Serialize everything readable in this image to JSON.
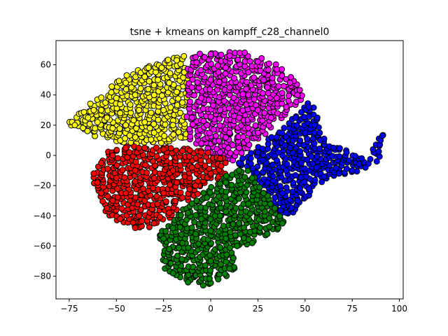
{
  "chart_data": {
    "type": "scatter",
    "title": "tsne + kmeans on kampff_c28_channel0",
    "xlabel": "",
    "ylabel": "",
    "xlim": [
      -82,
      102
    ],
    "ylim": [
      -95,
      76
    ],
    "x_ticks": [
      -75,
      -50,
      -25,
      0,
      25,
      50,
      75,
      100
    ],
    "y_ticks": [
      -80,
      -60,
      -40,
      -20,
      0,
      20,
      40,
      60
    ],
    "x_tick_labels": [
      "−75",
      "−50",
      "−25",
      "0",
      "25",
      "50",
      "75",
      "100"
    ],
    "y_tick_labels": [
      "−80",
      "−60",
      "−40",
      "−20",
      "0",
      "20",
      "40",
      "60"
    ],
    "grid": false,
    "marker_edge_color": "#000000",
    "clusters": [
      {
        "color": "#ffff00",
        "region_polygon": [
          [
            -76,
            21
          ],
          [
            -70,
            28
          ],
          [
            -62,
            36
          ],
          [
            -55,
            42
          ],
          [
            -48,
            52
          ],
          [
            -40,
            56
          ],
          [
            -30,
            60
          ],
          [
            -22,
            64
          ],
          [
            -14,
            66
          ],
          [
            -12,
            50
          ],
          [
            -13,
            30
          ],
          [
            -12,
            10
          ],
          [
            -30,
            6
          ],
          [
            -45,
            7
          ],
          [
            -55,
            10
          ],
          [
            -65,
            14
          ],
          [
            -73,
            18
          ]
        ],
        "points": [
          [
            -72,
            20
          ],
          [
            -65,
            25
          ],
          [
            -58,
            30
          ],
          [
            -50,
            38
          ],
          [
            -42,
            45
          ],
          [
            -35,
            52
          ],
          [
            -26,
            58
          ],
          [
            -18,
            63
          ],
          [
            -45,
            20
          ],
          [
            -38,
            30
          ],
          [
            -30,
            40
          ],
          [
            -22,
            48
          ],
          [
            -15,
            35
          ],
          [
            -20,
            20
          ],
          [
            -30,
            15
          ],
          [
            -40,
            12
          ],
          [
            -52,
            18
          ],
          [
            -60,
            22
          ],
          [
            -48,
            28
          ],
          [
            -35,
            22
          ],
          [
            -25,
            30
          ],
          [
            -18,
            42
          ],
          [
            -28,
            50
          ],
          [
            -40,
            40
          ],
          [
            -55,
            25
          ],
          [
            -14,
            55
          ],
          [
            -16,
            12
          ],
          [
            -45,
            48
          ],
          [
            -33,
            58
          ],
          [
            -62,
            30
          ]
        ]
      },
      {
        "color": "#ff00ff",
        "region_polygon": [
          [
            -13,
            66
          ],
          [
            -5,
            69
          ],
          [
            5,
            68
          ],
          [
            15,
            69
          ],
          [
            25,
            66
          ],
          [
            35,
            60
          ],
          [
            45,
            50
          ],
          [
            50,
            42
          ],
          [
            48,
            35
          ],
          [
            42,
            30
          ],
          [
            30,
            15
          ],
          [
            20,
            5
          ],
          [
            10,
            -5
          ],
          [
            0,
            0
          ],
          [
            -5,
            5
          ],
          [
            -12,
            10
          ],
          [
            -13,
            30
          ],
          [
            -12,
            50
          ]
        ],
        "points": [
          [
            -8,
            65
          ],
          [
            0,
            67
          ],
          [
            10,
            66
          ],
          [
            18,
            68
          ],
          [
            25,
            62
          ],
          [
            35,
            57
          ],
          [
            42,
            48
          ],
          [
            46,
            40
          ],
          [
            40,
            32
          ],
          [
            32,
            25
          ],
          [
            25,
            15
          ],
          [
            15,
            5
          ],
          [
            5,
            2
          ],
          [
            -5,
            8
          ],
          [
            -10,
            25
          ],
          [
            -10,
            45
          ],
          [
            0,
            50
          ],
          [
            10,
            45
          ],
          [
            20,
            40
          ],
          [
            30,
            45
          ],
          [
            5,
            30
          ],
          [
            15,
            25
          ],
          [
            -2,
            20
          ],
          [
            25,
            30
          ],
          [
            35,
            38
          ],
          [
            10,
            15
          ],
          [
            -5,
            38
          ],
          [
            20,
            55
          ],
          [
            8,
            58
          ],
          [
            28,
            50
          ]
        ]
      },
      {
        "color": "#0000ff",
        "region_polygon": [
          [
            12,
            -5
          ],
          [
            22,
            3
          ],
          [
            32,
            12
          ],
          [
            42,
            25
          ],
          [
            52,
            35
          ],
          [
            56,
            30
          ],
          [
            57,
            20
          ],
          [
            60,
            12
          ],
          [
            66,
            6
          ],
          [
            72,
            4
          ],
          [
            76,
            0
          ],
          [
            82,
            -4
          ],
          [
            86,
            2
          ],
          [
            88,
            12
          ],
          [
            92,
            14
          ],
          [
            92,
            6
          ],
          [
            90,
            0
          ],
          [
            86,
            -6
          ],
          [
            80,
            -10
          ],
          [
            72,
            -12
          ],
          [
            64,
            -14
          ],
          [
            56,
            -20
          ],
          [
            50,
            -30
          ],
          [
            44,
            -38
          ],
          [
            38,
            -44
          ],
          [
            35,
            -42
          ],
          [
            33,
            -30
          ],
          [
            28,
            -20
          ],
          [
            20,
            -10
          ]
        ],
        "points": [
          [
            15,
            -5
          ],
          [
            25,
            2
          ],
          [
            35,
            12
          ],
          [
            45,
            25
          ],
          [
            52,
            32
          ],
          [
            55,
            20
          ],
          [
            58,
            10
          ],
          [
            65,
            5
          ],
          [
            72,
            2
          ],
          [
            80,
            -2
          ],
          [
            86,
            4
          ],
          [
            90,
            10
          ],
          [
            91,
            13
          ],
          [
            88,
            -4
          ],
          [
            82,
            -8
          ],
          [
            75,
            -10
          ],
          [
            68,
            -12
          ],
          [
            60,
            -14
          ],
          [
            52,
            -22
          ],
          [
            46,
            -30
          ],
          [
            40,
            -38
          ],
          [
            36,
            -40
          ],
          [
            34,
            -28
          ],
          [
            30,
            -18
          ],
          [
            40,
            -10
          ],
          [
            48,
            -5
          ],
          [
            42,
            5
          ],
          [
            50,
            15
          ],
          [
            38,
            -25
          ],
          [
            56,
            -8
          ]
        ]
      },
      {
        "color": "#ff0000",
        "region_polygon": [
          [
            -62,
            -12
          ],
          [
            -60,
            -5
          ],
          [
            -55,
            2
          ],
          [
            -45,
            7
          ],
          [
            -30,
            6
          ],
          [
            -15,
            5
          ],
          [
            0,
            2
          ],
          [
            5,
            0
          ],
          [
            10,
            -4
          ],
          [
            8,
            -12
          ],
          [
            2,
            -18
          ],
          [
            -5,
            -25
          ],
          [
            -15,
            -33
          ],
          [
            -22,
            -42
          ],
          [
            -30,
            -48
          ],
          [
            -40,
            -50
          ],
          [
            -48,
            -44
          ],
          [
            -55,
            -40
          ],
          [
            -58,
            -30
          ],
          [
            -62,
            -20
          ]
        ],
        "points": [
          [
            -62,
            -12
          ],
          [
            -58,
            -5
          ],
          [
            -52,
            0
          ],
          [
            -45,
            5
          ],
          [
            -35,
            5
          ],
          [
            -25,
            4
          ],
          [
            -15,
            3
          ],
          [
            -5,
            2
          ],
          [
            5,
            -2
          ],
          [
            0,
            -12
          ],
          [
            -8,
            -20
          ],
          [
            -15,
            -28
          ],
          [
            -22,
            -38
          ],
          [
            -30,
            -45
          ],
          [
            -40,
            -48
          ],
          [
            -48,
            -42
          ],
          [
            -55,
            -35
          ],
          [
            -58,
            -25
          ],
          [
            -60,
            -18
          ],
          [
            -50,
            -15
          ],
          [
            -40,
            -10
          ],
          [
            -30,
            -15
          ],
          [
            -20,
            -10
          ],
          [
            -10,
            -8
          ],
          [
            -35,
            -30
          ],
          [
            -45,
            -25
          ],
          [
            -25,
            -25
          ],
          [
            -38,
            -40
          ],
          [
            -18,
            -18
          ],
          [
            -52,
            -30
          ]
        ]
      },
      {
        "color": "#008000",
        "region_polygon": [
          [
            -28,
            -52
          ],
          [
            -22,
            -44
          ],
          [
            -15,
            -35
          ],
          [
            -5,
            -26
          ],
          [
            5,
            -16
          ],
          [
            12,
            -10
          ],
          [
            18,
            -8
          ],
          [
            26,
            -18
          ],
          [
            32,
            -28
          ],
          [
            38,
            -40
          ],
          [
            40,
            -46
          ],
          [
            34,
            -50
          ],
          [
            26,
            -55
          ],
          [
            18,
            -60
          ],
          [
            10,
            -62
          ],
          [
            14,
            -70
          ],
          [
            12,
            -78
          ],
          [
            6,
            -82
          ],
          [
            0,
            -85
          ],
          [
            -8,
            -86
          ],
          [
            -14,
            -84
          ],
          [
            -20,
            -80
          ],
          [
            -25,
            -74
          ],
          [
            -26,
            -66
          ],
          [
            -24,
            -60
          ],
          [
            -28,
            -56
          ]
        ],
        "points": [
          [
            -25,
            -55
          ],
          [
            -20,
            -48
          ],
          [
            -12,
            -38
          ],
          [
            -2,
            -28
          ],
          [
            8,
            -18
          ],
          [
            15,
            -10
          ],
          [
            22,
            -15
          ],
          [
            28,
            -25
          ],
          [
            34,
            -35
          ],
          [
            38,
            -45
          ],
          [
            30,
            -52
          ],
          [
            22,
            -58
          ],
          [
            14,
            -60
          ],
          [
            8,
            -55
          ],
          [
            0,
            -50
          ],
          [
            -8,
            -52
          ],
          [
            -15,
            -58
          ],
          [
            -22,
            -62
          ],
          [
            -24,
            -70
          ],
          [
            -20,
            -78
          ],
          [
            -12,
            -84
          ],
          [
            -4,
            -86
          ],
          [
            4,
            -82
          ],
          [
            10,
            -75
          ],
          [
            12,
            -68
          ],
          [
            5,
            -40
          ],
          [
            -5,
            -42
          ],
          [
            15,
            -45
          ],
          [
            20,
            -32
          ],
          [
            0,
            -70
          ]
        ]
      }
    ]
  }
}
